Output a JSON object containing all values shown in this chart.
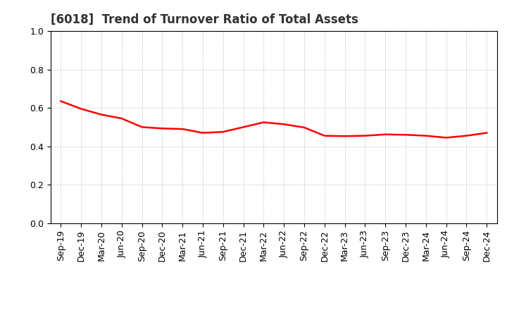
{
  "title": "[6018]  Trend of Turnover Ratio of Total Assets",
  "x_labels": [
    "Sep-19",
    "Dec-19",
    "Mar-20",
    "Jun-20",
    "Sep-20",
    "Dec-20",
    "Mar-21",
    "Jun-21",
    "Sep-21",
    "Dec-21",
    "Mar-22",
    "Jun-22",
    "Sep-22",
    "Dec-22",
    "Mar-23",
    "Jun-23",
    "Sep-23",
    "Dec-23",
    "Mar-24",
    "Jun-24",
    "Sep-24",
    "Dec-24"
  ],
  "y_values": [
    0.635,
    0.595,
    0.565,
    0.545,
    0.5,
    0.493,
    0.49,
    0.47,
    0.475,
    0.5,
    0.525,
    0.515,
    0.498,
    0.455,
    0.453,
    0.455,
    0.462,
    0.46,
    0.455,
    0.445,
    0.455,
    0.47
  ],
  "ylim": [
    0.0,
    1.0
  ],
  "yticks": [
    0.0,
    0.2,
    0.4,
    0.6,
    0.8,
    1.0
  ],
  "line_color": "#FF0000",
  "line_width": 1.8,
  "bg_color": "#FFFFFF",
  "plot_bg_color": "#FFFFFF",
  "grid_color": "#AAAAAA",
  "title_fontsize": 12,
  "tick_fontsize": 9,
  "title_color": "#333333"
}
